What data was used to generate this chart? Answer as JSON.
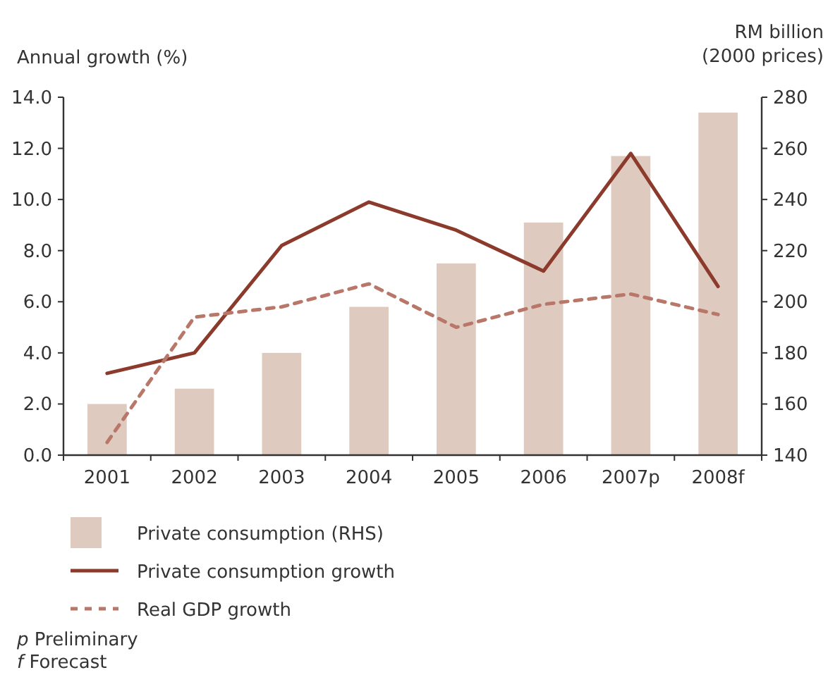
{
  "chart_data": {
    "type": "bar",
    "ylabel": "Annual growth (%)",
    "y2label": "RM billion\n(2000 prices)",
    "categories": [
      "2001",
      "2002",
      "2003",
      "2004",
      "2005",
      "2006",
      "2007p",
      "2008f"
    ],
    "series": [
      {
        "name": "Private consumption (RHS)",
        "axis": "y2",
        "color": "#dfcabf",
        "values": [
          160,
          166,
          180,
          198,
          215,
          231,
          257,
          274
        ]
      },
      {
        "name": "Private consumption growth",
        "type": "line",
        "line_style": "solid",
        "color": "#8b3a2c",
        "values": [
          3.2,
          4.0,
          8.2,
          9.9,
          8.8,
          7.2,
          11.8,
          6.6
        ]
      },
      {
        "name": "Real GDP growth",
        "type": "line",
        "line_style": "dashed",
        "color": "#b9776a",
        "values": [
          0.5,
          5.4,
          5.8,
          6.7,
          5.0,
          5.9,
          6.3,
          5.5
        ]
      }
    ],
    "ylim": [
      0,
      14
    ],
    "yticks": [
      {
        "value": 0,
        "label": "0.0"
      },
      {
        "value": 2,
        "label": "2.0"
      },
      {
        "value": 4,
        "label": "4.0"
      },
      {
        "value": 6,
        "label": "6.0"
      },
      {
        "value": 8,
        "label": "8.0"
      },
      {
        "value": 10,
        "label": "10.0"
      },
      {
        "value": 12,
        "label": "12.0"
      },
      {
        "value": 14,
        "label": "14.0"
      }
    ],
    "y2lim": [
      140,
      280
    ],
    "y2ticks": [
      140,
      160,
      180,
      200,
      220,
      240,
      260,
      280
    ],
    "legend": "bottom",
    "grid": false,
    "annotations": [
      "p  Preliminary",
      "f  Forecast"
    ]
  }
}
